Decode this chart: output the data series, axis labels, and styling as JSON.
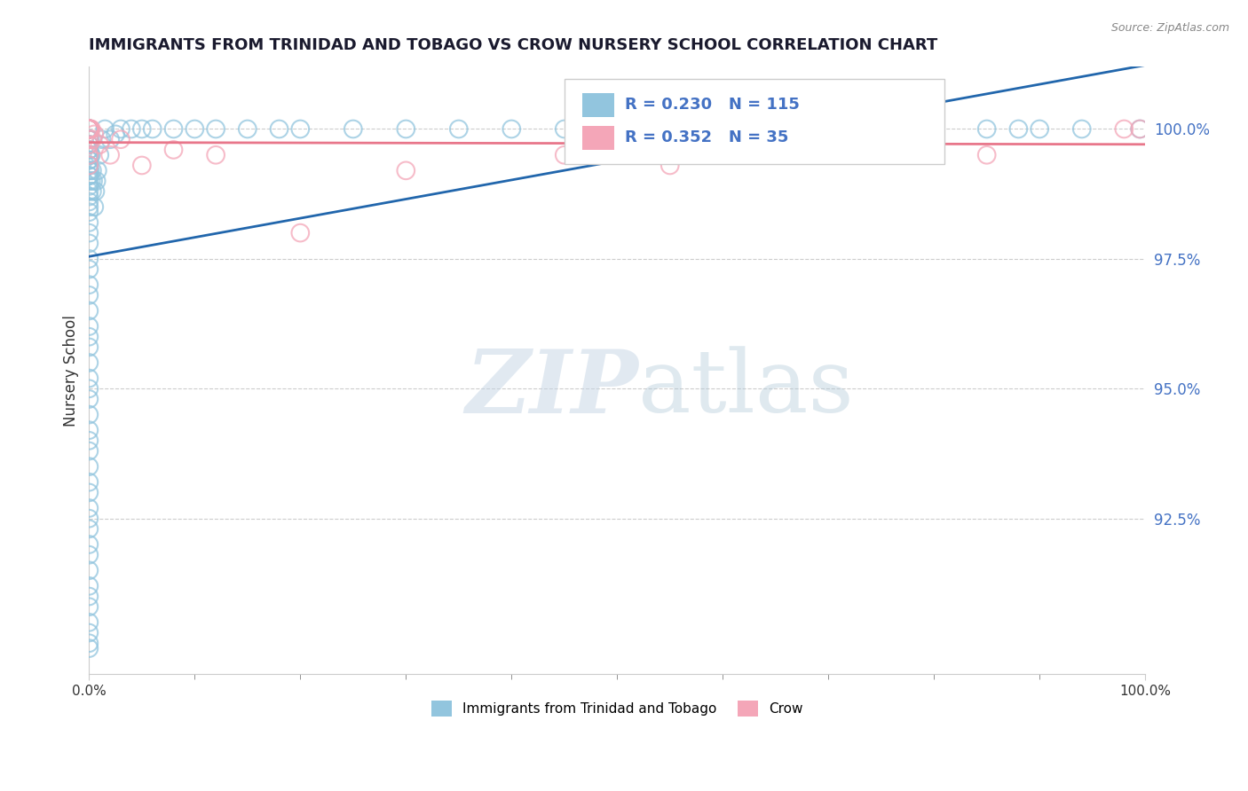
{
  "title": "IMMIGRANTS FROM TRINIDAD AND TOBAGO VS CROW NURSERY SCHOOL CORRELATION CHART",
  "source": "Source: ZipAtlas.com",
  "ylabel": "Nursery School",
  "xlim": [
    0.0,
    100.0
  ],
  "ylim": [
    89.5,
    101.2
  ],
  "legend_label1": "Immigrants from Trinidad and Tobago",
  "legend_label2": "Crow",
  "r1": 0.23,
  "n1": 115,
  "r2": 0.352,
  "n2": 35,
  "blue_color": "#92c5de",
  "pink_color": "#f4a6b8",
  "blue_line_color": "#2166ac",
  "pink_line_color": "#e8768a",
  "background_color": "#ffffff",
  "ytick_vals": [
    92.5,
    95.0,
    97.5,
    100.0
  ],
  "ytick_labels": [
    "92.5%",
    "95.0%",
    "97.5%",
    "100.0%"
  ],
  "blue_points_x": [
    0.0,
    0.0,
    0.0,
    0.0,
    0.0,
    0.0,
    0.0,
    0.0,
    0.0,
    0.0,
    0.0,
    0.0,
    0.0,
    0.0,
    0.0,
    0.0,
    0.0,
    0.0,
    0.0,
    0.0,
    0.0,
    0.0,
    0.0,
    0.0,
    0.0,
    0.0,
    0.0,
    0.0,
    0.0,
    0.0,
    0.0,
    0.0,
    0.0,
    0.0,
    0.0,
    0.0,
    0.0,
    0.0,
    0.0,
    0.0,
    0.0,
    0.0,
    0.0,
    0.0,
    0.0,
    0.0,
    0.0,
    0.0,
    0.0,
    0.0,
    0.0,
    0.0,
    0.0,
    0.0,
    0.0,
    0.0,
    0.0,
    0.0,
    0.0,
    0.0,
    0.0,
    0.0,
    0.0,
    0.0,
    0.0,
    0.0,
    0.0,
    0.0,
    0.0,
    0.0,
    0.1,
    0.1,
    0.1,
    0.1,
    0.2,
    0.2,
    0.3,
    0.3,
    0.4,
    0.5,
    0.6,
    0.7,
    0.8,
    1.0,
    1.2,
    1.5,
    2.0,
    2.5,
    3.0,
    4.0,
    5.0,
    6.0,
    8.0,
    10.0,
    12.0,
    15.0,
    18.0,
    20.0,
    25.0,
    30.0,
    35.0,
    40.0,
    45.0,
    50.0,
    55.0,
    60.0,
    65.0,
    70.0,
    75.0,
    80.0,
    85.0,
    88.0,
    90.0,
    94.0,
    99.5
  ],
  "blue_points_y": [
    100.0,
    100.0,
    100.0,
    100.0,
    100.0,
    100.0,
    100.0,
    100.0,
    100.0,
    100.0,
    100.0,
    100.0,
    100.0,
    99.8,
    99.8,
    99.7,
    99.7,
    99.6,
    99.6,
    99.5,
    99.4,
    99.4,
    99.3,
    99.2,
    99.1,
    99.0,
    98.9,
    98.8,
    98.7,
    98.6,
    98.5,
    98.4,
    98.2,
    98.0,
    97.8,
    97.5,
    97.3,
    97.0,
    96.8,
    96.5,
    96.2,
    96.0,
    95.8,
    95.5,
    95.2,
    95.0,
    94.8,
    94.5,
    94.2,
    94.0,
    93.8,
    93.5,
    93.2,
    93.0,
    92.7,
    92.5,
    92.3,
    92.0,
    91.8,
    91.5,
    91.2,
    91.0,
    90.8,
    90.5,
    90.3,
    90.1,
    90.0,
    99.5,
    99.3,
    99.1,
    100.0,
    99.8,
    99.5,
    99.2,
    99.5,
    99.0,
    99.2,
    98.8,
    99.0,
    98.5,
    98.8,
    99.0,
    99.2,
    99.5,
    99.8,
    100.0,
    99.8,
    99.9,
    100.0,
    100.0,
    100.0,
    100.0,
    100.0,
    100.0,
    100.0,
    100.0,
    100.0,
    100.0,
    100.0,
    100.0,
    100.0,
    100.0,
    100.0,
    100.0,
    100.0,
    100.0,
    100.0,
    100.0,
    100.0,
    100.0,
    100.0,
    100.0,
    100.0,
    100.0,
    100.0
  ],
  "pink_points_x": [
    0.0,
    0.0,
    0.0,
    0.0,
    0.0,
    0.0,
    0.0,
    0.0,
    0.0,
    0.0,
    0.0,
    0.0,
    0.0,
    0.0,
    0.0,
    0.1,
    0.2,
    0.3,
    0.5,
    1.0,
    2.0,
    3.0,
    5.0,
    8.0,
    12.0,
    20.0,
    30.0,
    45.0,
    55.0,
    65.0,
    75.0,
    80.0,
    85.0,
    98.0,
    99.5
  ],
  "pink_points_y": [
    100.0,
    100.0,
    100.0,
    100.0,
    100.0,
    100.0,
    100.0,
    100.0,
    100.0,
    100.0,
    100.0,
    99.8,
    99.7,
    99.5,
    99.3,
    100.0,
    100.0,
    99.8,
    99.9,
    99.7,
    99.5,
    99.8,
    99.3,
    99.6,
    99.5,
    98.0,
    99.2,
    99.5,
    99.3,
    99.8,
    100.0,
    100.0,
    99.5,
    100.0,
    100.0
  ]
}
